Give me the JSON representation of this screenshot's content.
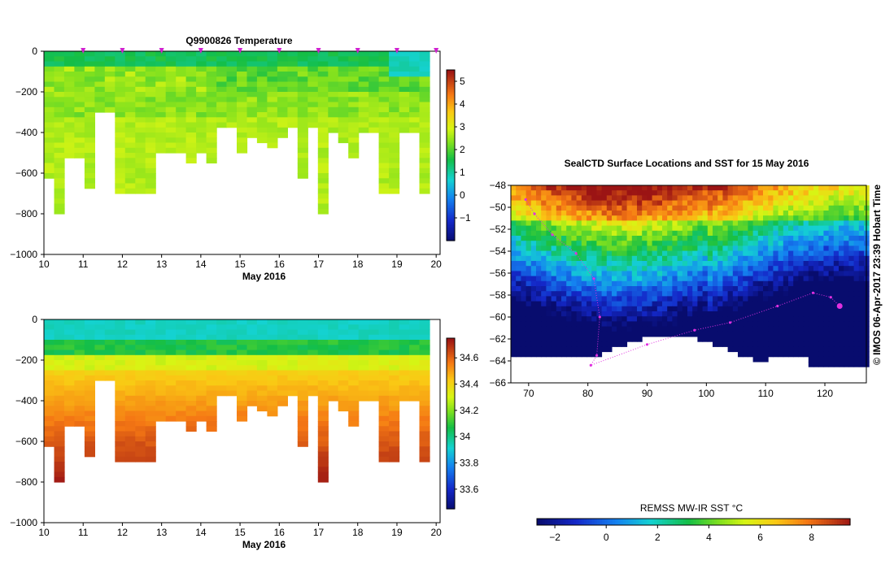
{
  "chart_data": [
    {
      "type": "heatmap",
      "title": "Q9900826  Temperature",
      "xlabel": "May 2016",
      "ylabel": "",
      "xlim": [
        10,
        20.1
      ],
      "ylim": [
        -1000,
        0
      ],
      "x_ticks": [
        "10",
        "11",
        "12",
        "13",
        "14",
        "15",
        "16",
        "17",
        "18",
        "19",
        "20"
      ],
      "y_ticks": [
        "0",
        "−200",
        "−400",
        "−600",
        "−800",
        "−1000"
      ],
      "colorbar": {
        "ticks": [
          "5",
          "4",
          "3",
          "2",
          "1",
          "0",
          "−1"
        ],
        "range": [
          -2,
          5.5
        ]
      },
      "surface_markers": [
        11,
        12,
        13,
        14,
        15,
        16,
        17,
        18,
        19,
        20
      ],
      "profile_max_depth": [
        620,
        800,
        520,
        520,
        660,
        300,
        300,
        700,
        700,
        680,
        680,
        500,
        500,
        500,
        530,
        500,
        550,
        370,
        370,
        500,
        420,
        450,
        460,
        410,
        360,
        620,
        360,
        800,
        380,
        440,
        510,
        380,
        380,
        690,
        690,
        400,
        400,
        700
      ]
    },
    {
      "type": "heatmap",
      "title": "",
      "xlabel": "May 2016",
      "ylabel": "",
      "xlim": [
        10,
        20.1
      ],
      "ylim": [
        -1000,
        0
      ],
      "x_ticks": [
        "10",
        "11",
        "12",
        "13",
        "14",
        "15",
        "16",
        "17",
        "18",
        "19",
        "20"
      ],
      "y_ticks": [
        "0",
        "−200",
        "−400",
        "−600",
        "−800",
        "−1000"
      ],
      "colorbar": {
        "ticks": [
          "34.6",
          "34.4",
          "34.2",
          "34",
          "33.8",
          "33.6"
        ],
        "range": [
          33.45,
          34.75
        ]
      },
      "profile_max_depth": [
        620,
        800,
        520,
        520,
        660,
        300,
        300,
        700,
        700,
        680,
        680,
        500,
        500,
        500,
        530,
        500,
        550,
        370,
        370,
        500,
        420,
        450,
        460,
        410,
        360,
        620,
        360,
        800,
        380,
        440,
        510,
        380,
        380,
        690,
        690,
        400,
        400,
        700
      ]
    },
    {
      "type": "heatmap",
      "title": "SealCTD Surface Locations and SST for 15 May 2016",
      "xlabel": "",
      "ylabel": "",
      "xlim": [
        67,
        127
      ],
      "ylim": [
        -66,
        -48
      ],
      "x_ticks": [
        "70",
        "80",
        "90",
        "100",
        "110",
        "120"
      ],
      "y_ticks": [
        "−48",
        "−50",
        "−52",
        "−54",
        "−56",
        "−58",
        "−60",
        "−62",
        "−64",
        "−66"
      ],
      "colorbar": {
        "label": "REMSS MW-IR SST °C",
        "ticks": [
          "−2",
          "0",
          "2",
          "4",
          "6",
          "8"
        ],
        "range": [
          -2.7,
          9.5
        ]
      },
      "credit": "©  IMOS 06-Apr-2017 23:39 Hobart Time",
      "track_points": [
        [
          69.5,
          -49.3
        ],
        [
          71,
          -50.6
        ],
        [
          74,
          -52.5
        ],
        [
          78,
          -54.2
        ],
        [
          81,
          -56.5
        ],
        [
          82,
          -60
        ],
        [
          81.5,
          -63.5
        ],
        [
          80.5,
          -64.4
        ],
        [
          90,
          -62.5
        ],
        [
          98,
          -61.2
        ],
        [
          104,
          -60.5
        ],
        [
          112,
          -59
        ],
        [
          118,
          -57.8
        ],
        [
          121,
          -58.2
        ],
        [
          122.5,
          -59
        ]
      ]
    }
  ]
}
